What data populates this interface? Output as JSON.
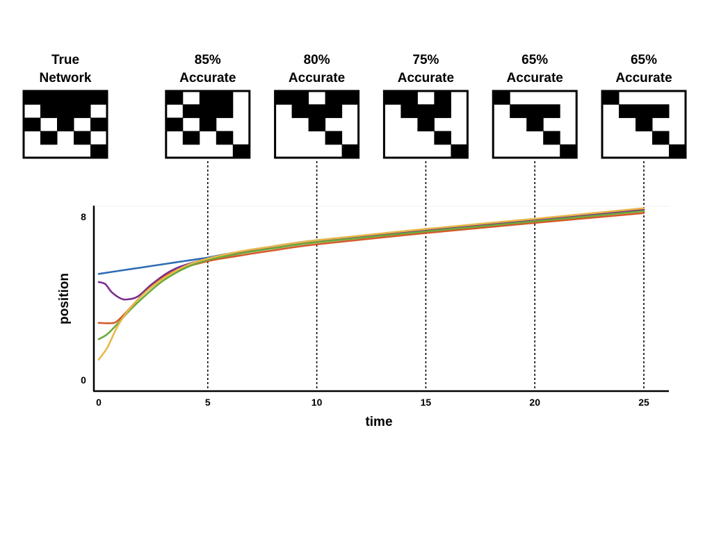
{
  "chart_data": {
    "type": "line",
    "xlabel": "time",
    "ylabel": "position",
    "xlim": [
      0,
      25
    ],
    "ylim": [
      0,
      8
    ],
    "x_ticks": [
      "0",
      "5",
      "10",
      "15",
      "20",
      "25"
    ],
    "y_ticks": [
      "0",
      "8"
    ],
    "grid": false,
    "legend": "none",
    "series": [
      {
        "color": "#2e6db4",
        "x": [
          0,
          1,
          2,
          3,
          4,
          5,
          6,
          8,
          10,
          15,
          20,
          25
        ],
        "y": [
          5.2,
          5.36,
          5.52,
          5.68,
          5.84,
          6.0,
          6.2,
          6.55,
          6.85,
          7.38,
          7.88,
          8.35
        ]
      },
      {
        "color": "#7b2e8e",
        "x": [
          0,
          0.3,
          0.6,
          1.0,
          1.3,
          1.8,
          2.5,
          3.5,
          5,
          6.5,
          8,
          10,
          15,
          20,
          25
        ],
        "y": [
          4.8,
          4.7,
          4.3,
          4.0,
          3.95,
          4.1,
          4.75,
          5.45,
          5.95,
          6.25,
          6.5,
          6.82,
          7.35,
          7.85,
          8.35
        ]
      },
      {
        "color": "#d45a2a",
        "x": [
          0,
          0.5,
          0.8,
          1.2,
          1.8,
          2.5,
          3.5,
          5,
          6.5,
          8,
          10,
          15,
          20,
          25
        ],
        "y": [
          2.8,
          2.78,
          2.85,
          3.25,
          3.95,
          4.65,
          5.35,
          5.82,
          6.1,
          6.35,
          6.65,
          7.2,
          7.7,
          8.18
        ]
      },
      {
        "color": "#6aaa3a",
        "x": [
          0,
          0.4,
          0.9,
          1.5,
          2.2,
          3.0,
          4,
          5,
          6.5,
          8,
          10,
          15,
          20,
          25
        ],
        "y": [
          2.0,
          2.25,
          2.8,
          3.5,
          4.2,
          4.9,
          5.5,
          5.88,
          6.2,
          6.45,
          6.75,
          7.28,
          7.78,
          8.28
        ]
      },
      {
        "color": "#e8b84a",
        "x": [
          0,
          0.4,
          0.9,
          1.5,
          2.2,
          3.0,
          4,
          5,
          6.5,
          8,
          10,
          15,
          20,
          25
        ],
        "y": [
          1.0,
          1.6,
          2.7,
          3.6,
          4.35,
          5.0,
          5.6,
          5.95,
          6.3,
          6.55,
          6.85,
          7.4,
          7.9,
          8.42
        ]
      }
    ],
    "markers": [
      5,
      10,
      15,
      20,
      25
    ]
  },
  "networks": [
    {
      "label_lines": [
        "True",
        "Network"
      ],
      "cells": [
        [
          1,
          1,
          1,
          1,
          1
        ],
        [
          0,
          1,
          1,
          1,
          0
        ],
        [
          1,
          0,
          1,
          0,
          1
        ],
        [
          0,
          1,
          0,
          1,
          0
        ],
        [
          0,
          0,
          0,
          0,
          1
        ]
      ]
    },
    {
      "label_lines": [
        "85%",
        "Accurate"
      ],
      "marker_time": 5,
      "cells": [
        [
          1,
          0,
          1,
          1,
          0
        ],
        [
          0,
          1,
          1,
          1,
          0
        ],
        [
          1,
          0,
          1,
          0,
          0
        ],
        [
          0,
          1,
          0,
          1,
          0
        ],
        [
          0,
          0,
          0,
          0,
          1
        ]
      ]
    },
    {
      "label_lines": [
        "80%",
        "Accurate"
      ],
      "marker_time": 10,
      "cells": [
        [
          1,
          1,
          0,
          1,
          1
        ],
        [
          0,
          1,
          1,
          1,
          0
        ],
        [
          0,
          0,
          1,
          0,
          0
        ],
        [
          0,
          0,
          0,
          1,
          0
        ],
        [
          0,
          0,
          0,
          0,
          1
        ]
      ]
    },
    {
      "label_lines": [
        "75%",
        "Accurate"
      ],
      "marker_time": 15,
      "cells": [
        [
          1,
          1,
          0,
          1,
          0
        ],
        [
          0,
          1,
          1,
          1,
          0
        ],
        [
          0,
          0,
          1,
          0,
          0
        ],
        [
          0,
          0,
          0,
          1,
          0
        ],
        [
          0,
          0,
          0,
          0,
          1
        ]
      ]
    },
    {
      "label_lines": [
        "65%",
        "Accurate"
      ],
      "marker_time": 20,
      "cells": [
        [
          1,
          0,
          0,
          0,
          0
        ],
        [
          0,
          1,
          1,
          1,
          0
        ],
        [
          0,
          0,
          1,
          0,
          0
        ],
        [
          0,
          0,
          0,
          1,
          0
        ],
        [
          0,
          0,
          0,
          0,
          1
        ]
      ]
    },
    {
      "label_lines": [
        "65%",
        "Accurate"
      ],
      "marker_time": 25,
      "cells": [
        [
          1,
          0,
          0,
          0,
          0
        ],
        [
          0,
          1,
          1,
          1,
          0
        ],
        [
          0,
          0,
          1,
          0,
          0
        ],
        [
          0,
          0,
          0,
          1,
          0
        ],
        [
          0,
          0,
          0,
          0,
          1
        ]
      ]
    }
  ]
}
